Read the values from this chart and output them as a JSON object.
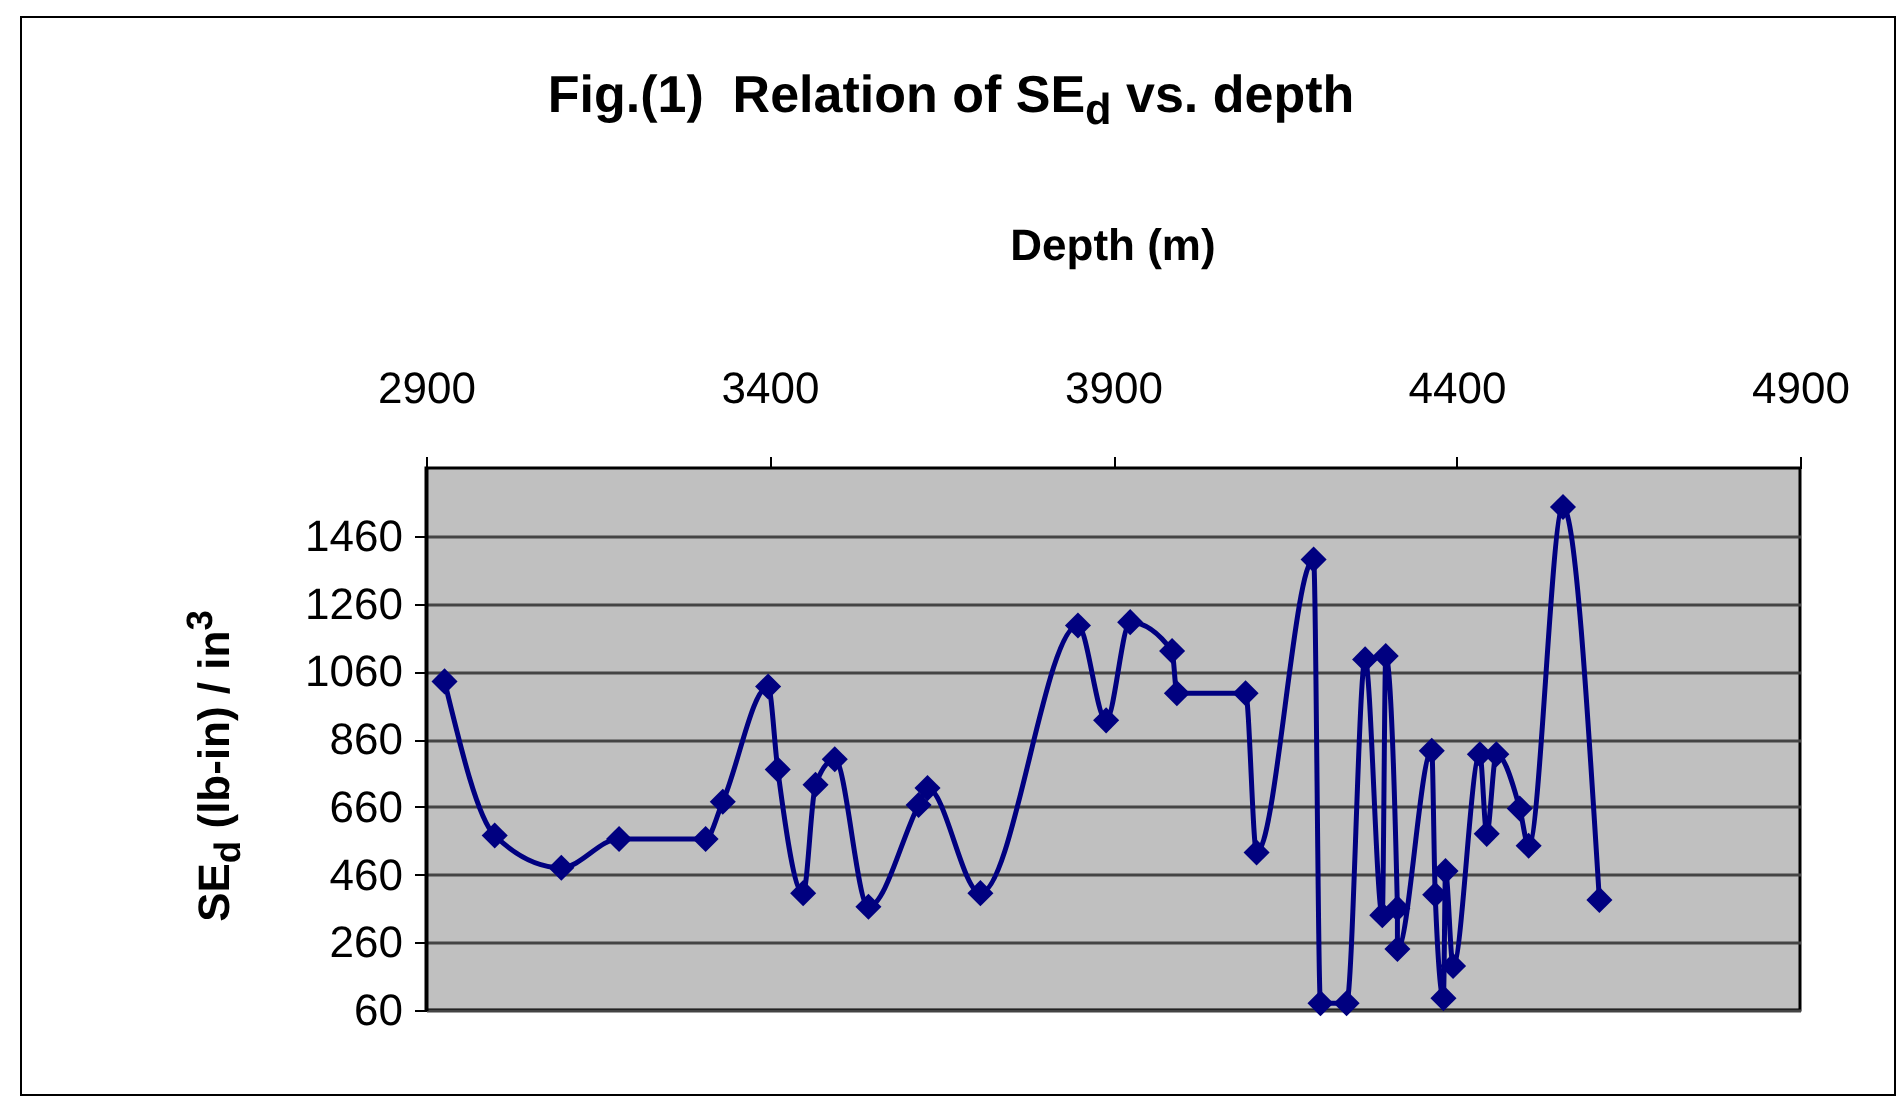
{
  "chart_data": {
    "type": "line",
    "title": "Fig.(1)  Relation of SE$_{d}$ vs. depth",
    "xlabel": "Depth (m)",
    "ylabel": "SE$_{d}$ (lb-in) / in$^{3}$",
    "x": [
      2927,
      3000,
      3097,
      3181,
      3307,
      3332,
      3398,
      3412,
      3449,
      3467,
      3495,
      3544,
      3617,
      3630,
      3707,
      3849,
      3890,
      3925,
      3986,
      3993,
      4093,
      4109,
      4192,
      4202,
      4240,
      4267,
      4292,
      4297,
      4314,
      4314,
      4364,
      4369,
      4381,
      4384,
      4395,
      4434,
      4444,
      4458,
      4492,
      4505,
      4555,
      4608
    ],
    "series": [
      {
        "color": "#000080",
        "values": [
          1030,
          575,
          480,
          565,
          565,
          675,
          1015,
          770,
          405,
          725,
          800,
          365,
          665,
          715,
          405,
          1195,
          915,
          1205,
          1120,
          995,
          995,
          525,
          1390,
          80,
          80,
          1095,
          340,
          1105,
          360,
          240,
          825,
          400,
          95,
          470,
          190,
          815,
          580,
          815,
          655,
          545,
          1545,
          385
        ]
      }
    ],
    "xlim": [
      2900,
      4900
    ],
    "xticks": [
      2900,
      3400,
      3900,
      4400,
      4900
    ],
    "ylim": [
      60,
      1660
    ],
    "yticks": [
      60,
      260,
      460,
      660,
      860,
      1060,
      1260,
      1460
    ],
    "grid": "y",
    "marker": "diamond",
    "line_style": "solid"
  }
}
